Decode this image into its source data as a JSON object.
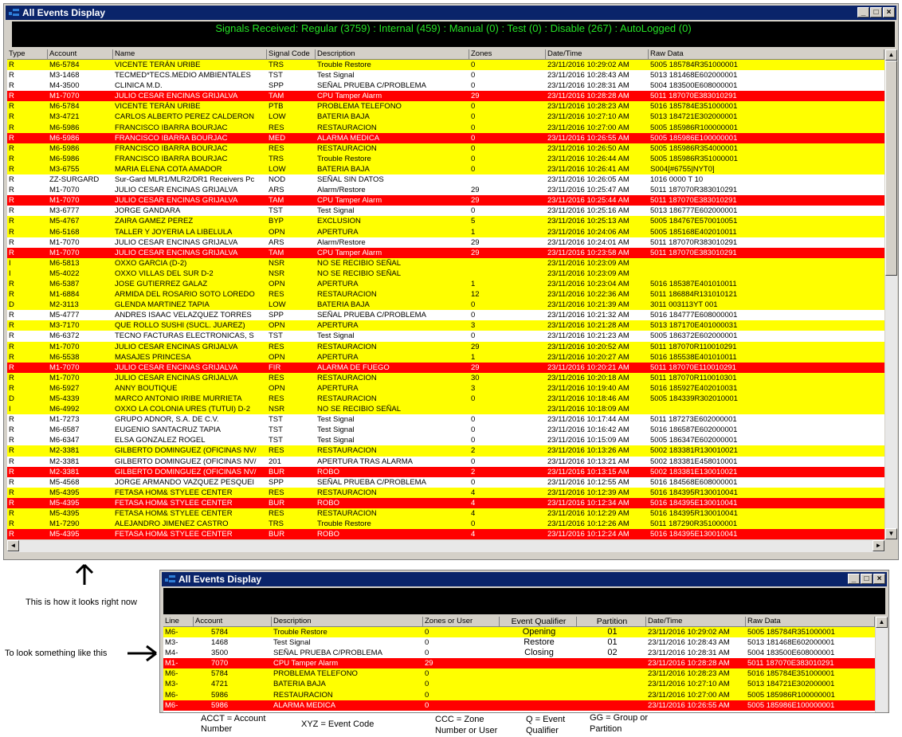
{
  "window1": {
    "title": "All Events Display",
    "banner": "Signals Received: Regular (3759) : Internal (459) : Manual (0) : Test (0) : Disable (267) : AutoLogged (0)",
    "columns": [
      "Type",
      "Account",
      "Name",
      "Signal Code",
      "Description",
      "Zones",
      "Date/Time",
      "Raw Data"
    ],
    "rows": [
      [
        "R",
        "M6-5784",
        "VICENTE TERÁN URIBE",
        "TRS",
        "Trouble Restore",
        "0",
        "23/11/2016 10:29:02 AM",
        "5005 185784R351000001",
        "yel"
      ],
      [
        "R",
        "M3-1468",
        "TECMED*TECS.MEDIO AMBIENTALES",
        "TST",
        "Test Signal",
        "0",
        "23/11/2016 10:28:43 AM",
        "5013 181468E602000001",
        "wht"
      ],
      [
        "R",
        "M4-3500",
        "CLINICA M.D.",
        "SPP",
        "SEÑAL PRUEBA C/PROBLEMA",
        "0",
        "23/11/2016 10:28:31 AM",
        "5004 183500E608000001",
        "wht"
      ],
      [
        "R",
        "M1-7070",
        "JULIO CESAR ENCINAS GRIJALVA",
        "TAM",
        "CPU Tamper Alarm",
        "29",
        "23/11/2016 10:28:28 AM",
        "5011 187070E383010291",
        "red"
      ],
      [
        "R",
        "M6-5784",
        "VICENTE TERÁN URIBE",
        "PTB",
        "PROBLEMA TELEFONO",
        "0",
        "23/11/2016 10:28:23 AM",
        "5016 185784E351000001",
        "yel"
      ],
      [
        "R",
        "M3-4721",
        "CARLOS ALBERTO PEREZ CALDERON",
        "LOW",
        "BATERIA BAJA",
        "0",
        "23/11/2016 10:27:10 AM",
        "5013 184721E302000001",
        "yel"
      ],
      [
        "R",
        "M6-5986",
        "FRANCISCO IBARRA BOURJAC",
        "RES",
        "RESTAURACION",
        "0",
        "23/11/2016 10:27:00 AM",
        "5005 185986R100000001",
        "yel"
      ],
      [
        "R",
        "M6-5986",
        "FRANCISCO IBARRA BOURJAC",
        "MED",
        "ALARMA MEDICA",
        "0",
        "23/11/2016 10:26:55 AM",
        "5005 185986E100000001",
        "red"
      ],
      [
        "R",
        "M6-5986",
        "FRANCISCO IBARRA BOURJAC",
        "RES",
        "RESTAURACION",
        "0",
        "23/11/2016 10:26:50 AM",
        "5005 185986R354000001",
        "yel"
      ],
      [
        "R",
        "M6-5986",
        "FRANCISCO IBARRA BOURJAC",
        "TRS",
        "Trouble Restore",
        "0",
        "23/11/2016 10:26:44 AM",
        "5005 185986R351000001",
        "yel"
      ],
      [
        "R",
        "M3-6755",
        "MARIA ELENA COTA AMADOR",
        "LOW",
        "BATERIA BAJA",
        "0",
        "23/11/2016 10:26:41 AM",
        "S004[#6755|NYT0]",
        "yel"
      ],
      [
        "R",
        "ZZ-SURGARD",
        "Sur-Gard MLR1/MLR2/DR1 Receivers Pc",
        "NOD",
        "SEÑAL SIN DATOS",
        "",
        "23/11/2016 10:26:05 AM",
        "1016    0000 T  10",
        "wht"
      ],
      [
        "R",
        "M1-7070",
        "JULIO CESAR ENCINAS GRIJALVA",
        "ARS",
        "Alarm/Restore",
        "29",
        "23/11/2016 10:25:47 AM",
        "5011 187070R383010291",
        "wht"
      ],
      [
        "R",
        "M1-7070",
        "JULIO CESAR ENCINAS GRIJALVA",
        "TAM",
        "CPU Tamper Alarm",
        "29",
        "23/11/2016 10:25:44 AM",
        "5011 187070E383010291",
        "red"
      ],
      [
        "R",
        "M3-6777",
        "JORGE GANDARA",
        "TST",
        "Test Signal",
        "0",
        "23/11/2016 10:25:16 AM",
        "5013 186777E602000001",
        "wht"
      ],
      [
        "R",
        "M5-4767",
        "ZAIRA GAMEZ PEREZ",
        "BYP",
        "EXCLUSION",
        "5",
        "23/11/2016 10:25:13 AM",
        "5005 184767E570010051",
        "yel"
      ],
      [
        "R",
        "M6-5168",
        "TALLER Y JOYERIA LA LIBELULA",
        "OPN",
        "APERTURA",
        "1",
        "23/11/2016 10:24:06 AM",
        "5005 185168E402010011",
        "yel"
      ],
      [
        "R",
        "M1-7070",
        "JULIO CESAR ENCINAS GRIJALVA",
        "ARS",
        "Alarm/Restore",
        "29",
        "23/11/2016 10:24:01 AM",
        "5011 187070R383010291",
        "wht"
      ],
      [
        "R",
        "M1-7070",
        "JULIO CESAR ENCINAS GRIJALVA",
        "TAM",
        "CPU Tamper Alarm",
        "29",
        "23/11/2016 10:23:58 AM",
        "5011 187070E383010291",
        "red"
      ],
      [
        "I",
        "M6-5813",
        "OXXO GARCIA (D-2)",
        "NSR",
        "NO SE RECIBIO SEÑAL",
        "",
        "23/11/2016 10:23:09 AM",
        "",
        "yel"
      ],
      [
        "I",
        "M5-4022",
        "OXXO VILLAS DEL SUR  D-2",
        "NSR",
        "NO SE RECIBIO SEÑAL",
        "",
        "23/11/2016 10:23:09 AM",
        "",
        "yel"
      ],
      [
        "R",
        "M6-5387",
        "JOSE GUTIERREZ GALAZ",
        "OPN",
        "APERTURA",
        "1",
        "23/11/2016 10:23:04 AM",
        "5016 185387E401010011",
        "yel"
      ],
      [
        "R",
        "M1-6884",
        "ARMIDA DEL ROSARIO SOTO LOREDO",
        "RES",
        "RESTAURACION",
        "12",
        "23/11/2016 10:22:36 AM",
        "5011 186884R131010121",
        "yel"
      ],
      [
        "D",
        "M2-3113",
        "GLENDA MARTINEZ  TAPIA",
        "LOW",
        "BATERIA BAJA",
        "0",
        "23/11/2016 10:21:39 AM",
        "3011   003113YT  001",
        "yel"
      ],
      [
        "R",
        "M5-4777",
        "ANDRES ISAAC VELAZQUEZ TORRES",
        "SPP",
        "SEÑAL PRUEBA C/PROBLEMA",
        "0",
        "23/11/2016 10:21:32 AM",
        "5016 184777E608000001",
        "wht"
      ],
      [
        "R",
        "M3-7170",
        "QUE ROLLO SUSHI (SUCL. JUAREZ)",
        "OPN",
        "APERTURA",
        "3",
        "23/11/2016 10:21:28 AM",
        "5013 187170E401000031",
        "yel"
      ],
      [
        "R",
        "M6-6372",
        "TECNO FACTURAS ELECTRONICAS, S",
        "TST",
        "Test Signal",
        "0",
        "23/11/2016 10:21:23 AM",
        "5005 186372E602000001",
        "wht"
      ],
      [
        "R",
        "M1-7070",
        "JULIO CESAR ENCINAS GRIJALVA",
        "RES",
        "RESTAURACION",
        "29",
        "23/11/2016 10:20:52 AM",
        "5011 187070R110010291",
        "yel"
      ],
      [
        "R",
        "M6-5538",
        "MASAJES PRINCESA",
        "OPN",
        "APERTURA",
        "1",
        "23/11/2016 10:20:27 AM",
        "5016 185538E401010011",
        "yel"
      ],
      [
        "R",
        "M1-7070",
        "JULIO CESAR ENCINAS GRIJALVA",
        "FIR",
        "ALARMA DE FUEGO",
        "29",
        "23/11/2016 10:20:21 AM",
        "5011 187070E110010291",
        "red"
      ],
      [
        "R",
        "M1-7070",
        "JULIO CESAR ENCINAS GRIJALVA",
        "RES",
        "RESTAURACION",
        "30",
        "23/11/2016 10:20:18 AM",
        "5011 187070R110010301",
        "yel"
      ],
      [
        "R",
        "M6-5927",
        "ANNY BOUTIQUE",
        "OPN",
        "APERTURA",
        "3",
        "23/11/2016 10:19:40 AM",
        "5016 185927E402010031",
        "yel"
      ],
      [
        "D",
        "M5-4339",
        "MARCO ANTONIO IRIBE MURRIETA",
        "RES",
        "RESTAURACION",
        "0",
        "23/11/2016 10:18:46 AM",
        "5005 184339R302010001",
        "yel"
      ],
      [
        "I",
        "M6-4992",
        "OXXO LA COLONIA URES (TUTUI)  D-2",
        "NSR",
        "NO SE RECIBIO SEÑAL",
        "",
        "23/11/2016 10:18:09 AM",
        "",
        "yel"
      ],
      [
        "R",
        "M1-7273",
        "GRUPO ADNOR, S.A. DE C.V.",
        "TST",
        "Test Signal",
        "0",
        "23/11/2016 10:17:44 AM",
        "5011 187273E602000001",
        "wht"
      ],
      [
        "R",
        "M6-6587",
        "EUGENIO SANTACRUZ TAPIA",
        "TST",
        "Test Signal",
        "0",
        "23/11/2016 10:16:42 AM",
        "5016 186587E602000001",
        "wht"
      ],
      [
        "R",
        "M6-6347",
        "ELSA GONZALEZ ROGEL",
        "TST",
        "Test Signal",
        "0",
        "23/11/2016 10:15:09 AM",
        "5005 186347E602000001",
        "wht"
      ],
      [
        "R",
        "M2-3381",
        "GILBERTO DOMINGUEZ (OFICINAS NV/",
        "RES",
        "RESTAURACION",
        "2",
        "23/11/2016 10:13:26 AM",
        "5002 183381R130010021",
        "yel"
      ],
      [
        "R",
        "M2-3381",
        "GILBERTO DOMINGUEZ (OFICINAS NV/",
        "201",
        "APERTURA TRAS ALARMA",
        "0",
        "23/11/2016 10:13:21 AM",
        "5002 183381E458010001",
        "wht"
      ],
      [
        "R",
        "M2-3381",
        "GILBERTO DOMINGUEZ (OFICINAS NV/",
        "BUR",
        "ROBO",
        "2",
        "23/11/2016 10:13:15 AM",
        "5002 183381E130010021",
        "red"
      ],
      [
        "R",
        "M5-4568",
        "JORGE ARMANDO VAZQUEZ PESQUEI",
        "SPP",
        "SEÑAL PRUEBA C/PROBLEMA",
        "0",
        "23/11/2016 10:12:55 AM",
        "5016 184568E608000001",
        "wht"
      ],
      [
        "R",
        "M5-4395",
        "FETASA HOM&  STYLEE CENTER",
        "RES",
        "RESTAURACION",
        "4",
        "23/11/2016 10:12:39 AM",
        "5016 184395R130010041",
        "yel"
      ],
      [
        "R",
        "M5-4395",
        "FETASA HOM&  STYLEE CENTER",
        "BUR",
        "ROBO",
        "4",
        "23/11/2016 10:12:34 AM",
        "5016 184395E130010041",
        "red"
      ],
      [
        "R",
        "M5-4395",
        "FETASA HOM&  STYLEE CENTER",
        "RES",
        "RESTAURACION",
        "4",
        "23/11/2016 10:12:29 AM",
        "5016 184395R130010041",
        "yel"
      ],
      [
        "R",
        "M1-7290",
        "ALEJANDRO JIMENEZ CASTRO",
        "TRS",
        "Trouble Restore",
        "0",
        "23/11/2016 10:12:26 AM",
        "5011 187290R351000001",
        "yel"
      ],
      [
        "R",
        "M5-4395",
        "FETASA HOM&  STYLEE CENTER",
        "BUR",
        "ROBO",
        "4",
        "23/11/2016 10:12:24 AM",
        "5016 184395E130010041",
        "red"
      ]
    ]
  },
  "window2": {
    "title": "All Events Display",
    "columns": [
      "Line",
      "Account",
      "Description",
      "Zones  or User",
      "Event Qualifier",
      "Partition",
      "Date/Time",
      "Raw Data"
    ],
    "rows": [
      [
        "M6-",
        "5784",
        "Trouble Restore",
        "0",
        "Opening",
        "01",
        "23/11/2016 10:29:02 AM",
        "5005 185784R351000001",
        "yel"
      ],
      [
        "M3-",
        "1468",
        "Test Signal",
        "0",
        "Restore",
        "01",
        "23/11/2016 10:28:43 AM",
        "5013 181468E602000001",
        "wht"
      ],
      [
        "M4-",
        "3500",
        "SEÑAL PRUEBA C/PROBLEMA",
        "0",
        "Closing",
        "02",
        "23/11/2016 10:28:31 AM",
        "5004 183500E608000001",
        "wht"
      ],
      [
        "M1-",
        "7070",
        "CPU Tamper Alarm",
        "29",
        "",
        "",
        "23/11/2016 10:28:28 AM",
        "5011 187070E383010291",
        "red"
      ],
      [
        "M6-",
        "5784",
        "PROBLEMA TELEFONO",
        "0",
        "",
        "",
        "23/11/2016 10:28:23 AM",
        "5016 185784E351000001",
        "yel"
      ],
      [
        "M3-",
        "4721",
        "BATERIA BAJA",
        "0",
        "",
        "",
        "23/11/2016 10:27:10 AM",
        "5013 184721E302000001",
        "yel"
      ],
      [
        "M6-",
        "5986",
        "RESTAURACION",
        "0",
        "",
        "",
        "23/11/2016 10:27:00 AM",
        "5005 185986R100000001",
        "yel"
      ],
      [
        "M6-",
        "5986",
        "ALARMA MEDICA",
        "0",
        "",
        "",
        "23/11/2016 10:26:55 AM",
        "5005 185986E100000001",
        "red"
      ]
    ]
  },
  "notes": {
    "current": "This is how it looks right now",
    "target": "To look something like this",
    "legend": [
      "ACCT = Account Number",
      "XYZ = Event Code",
      "CCC = Zone Number or User",
      "Q = Event Qualifier",
      "GG = Group or Partition"
    ]
  },
  "colors": {
    "yellow": "#ffff00",
    "red": "#ff0000",
    "title": "#0a246a",
    "banner_text": "#25e025"
  }
}
